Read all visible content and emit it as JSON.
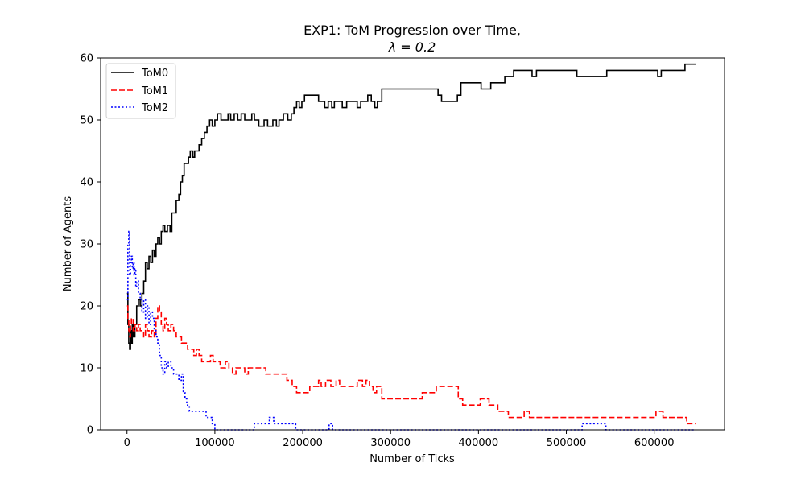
{
  "chart_data": {
    "type": "line",
    "title": "EXP1: ToM Progression over Time,",
    "subtitle": "λ = 0.2",
    "xlabel": "Number of Ticks",
    "ylabel": "Number of Agents",
    "xlim": [
      -30000,
      680000
    ],
    "ylim": [
      0,
      60
    ],
    "xticks": [
      0,
      100000,
      200000,
      300000,
      400000,
      500000,
      600000
    ],
    "xtick_labels": [
      "0",
      "100000",
      "200000",
      "300000",
      "400000",
      "500000",
      "600000"
    ],
    "yticks": [
      0,
      10,
      20,
      30,
      40,
      50,
      60
    ],
    "ytick_labels": [
      "0",
      "10",
      "20",
      "30",
      "40",
      "50",
      "60"
    ],
    "grid": false,
    "legend_position": "top-left",
    "series": [
      {
        "name": "ToM0",
        "color": "#000000",
        "style": "solid",
        "points": [
          [
            0,
            22
          ],
          [
            1000,
            17
          ],
          [
            2000,
            14
          ],
          [
            3000,
            13
          ],
          [
            4000,
            16
          ],
          [
            5000,
            14
          ],
          [
            6000,
            17
          ],
          [
            7000,
            15
          ],
          [
            9000,
            17
          ],
          [
            11000,
            20
          ],
          [
            13000,
            21
          ],
          [
            15000,
            20
          ],
          [
            17000,
            22
          ],
          [
            19000,
            24
          ],
          [
            21000,
            27
          ],
          [
            23000,
            26
          ],
          [
            25000,
            28
          ],
          [
            27000,
            27
          ],
          [
            29000,
            29
          ],
          [
            31000,
            28
          ],
          [
            33000,
            30
          ],
          [
            35000,
            31
          ],
          [
            37000,
            30
          ],
          [
            39000,
            32
          ],
          [
            41000,
            33
          ],
          [
            43000,
            32
          ],
          [
            46000,
            33
          ],
          [
            49000,
            32
          ],
          [
            51000,
            35
          ],
          [
            54000,
            35
          ],
          [
            56000,
            37
          ],
          [
            59000,
            38
          ],
          [
            61000,
            40
          ],
          [
            63000,
            41
          ],
          [
            65000,
            43
          ],
          [
            68000,
            43
          ],
          [
            70000,
            44
          ],
          [
            72000,
            45
          ],
          [
            75000,
            44
          ],
          [
            77000,
            45
          ],
          [
            80000,
            45
          ],
          [
            82000,
            46
          ],
          [
            85000,
            47
          ],
          [
            88000,
            48
          ],
          [
            91000,
            49
          ],
          [
            94000,
            50
          ],
          [
            97000,
            49
          ],
          [
            100000,
            50
          ],
          [
            103000,
            51
          ],
          [
            107000,
            50
          ],
          [
            112000,
            50
          ],
          [
            115000,
            51
          ],
          [
            118000,
            50
          ],
          [
            122000,
            51
          ],
          [
            126000,
            50
          ],
          [
            130000,
            51
          ],
          [
            134000,
            50
          ],
          [
            138000,
            50
          ],
          [
            142000,
            51
          ],
          [
            145000,
            50
          ],
          [
            150000,
            49
          ],
          [
            156000,
            50
          ],
          [
            160000,
            49
          ],
          [
            166000,
            50
          ],
          [
            170000,
            49
          ],
          [
            173000,
            50
          ],
          [
            178000,
            51
          ],
          [
            183000,
            50
          ],
          [
            187000,
            51
          ],
          [
            190000,
            52
          ],
          [
            193000,
            53
          ],
          [
            196000,
            52
          ],
          [
            199000,
            53
          ],
          [
            202000,
            54
          ],
          [
            210000,
            54
          ],
          [
            218000,
            53
          ],
          [
            225000,
            52
          ],
          [
            229000,
            53
          ],
          [
            233000,
            52
          ],
          [
            236000,
            53
          ],
          [
            240000,
            53
          ],
          [
            245000,
            52
          ],
          [
            250000,
            53
          ],
          [
            256000,
            53
          ],
          [
            262000,
            52
          ],
          [
            266000,
            53
          ],
          [
            270000,
            53
          ],
          [
            274000,
            54
          ],
          [
            278000,
            53
          ],
          [
            282000,
            52
          ],
          [
            285000,
            53
          ],
          [
            290000,
            55
          ],
          [
            310000,
            55
          ],
          [
            330000,
            55
          ],
          [
            354000,
            54
          ],
          [
            358000,
            53
          ],
          [
            366000,
            53
          ],
          [
            372000,
            53
          ],
          [
            376000,
            54
          ],
          [
            380000,
            56
          ],
          [
            395000,
            56
          ],
          [
            403000,
            55
          ],
          [
            410000,
            55
          ],
          [
            414000,
            56
          ],
          [
            426000,
            56
          ],
          [
            430000,
            57
          ],
          [
            436000,
            57
          ],
          [
            440000,
            58
          ],
          [
            456000,
            58
          ],
          [
            461000,
            57
          ],
          [
            466000,
            58
          ],
          [
            500000,
            58
          ],
          [
            507000,
            58
          ],
          [
            512000,
            57
          ],
          [
            541000,
            57
          ],
          [
            546000,
            58
          ],
          [
            562000,
            58
          ],
          [
            579000,
            58
          ],
          [
            600000,
            58
          ],
          [
            604000,
            57
          ],
          [
            608000,
            58
          ],
          [
            631000,
            58
          ],
          [
            635000,
            59
          ],
          [
            647000,
            59
          ]
        ]
      },
      {
        "name": "ToM1",
        "color": "#ff0000",
        "style": "dashed",
        "points": [
          [
            0,
            20
          ],
          [
            1000,
            18
          ],
          [
            2000,
            16
          ],
          [
            3000,
            15
          ],
          [
            4000,
            17
          ],
          [
            5000,
            18
          ],
          [
            7000,
            16
          ],
          [
            9000,
            17
          ],
          [
            11000,
            16
          ],
          [
            13000,
            17
          ],
          [
            15000,
            16
          ],
          [
            17000,
            16
          ],
          [
            19000,
            15
          ],
          [
            21000,
            17
          ],
          [
            23000,
            16
          ],
          [
            25000,
            15
          ],
          [
            28000,
            16
          ],
          [
            31000,
            15
          ],
          [
            33000,
            18
          ],
          [
            35000,
            20
          ],
          [
            37000,
            19
          ],
          [
            39000,
            17
          ],
          [
            41000,
            16
          ],
          [
            43000,
            18
          ],
          [
            45000,
            17
          ],
          [
            47000,
            16
          ],
          [
            50000,
            17
          ],
          [
            53000,
            16
          ],
          [
            56000,
            15
          ],
          [
            59000,
            15
          ],
          [
            62000,
            14
          ],
          [
            66000,
            14
          ],
          [
            69000,
            13
          ],
          [
            73000,
            13
          ],
          [
            76000,
            12
          ],
          [
            79000,
            13
          ],
          [
            82000,
            12
          ],
          [
            85000,
            11
          ],
          [
            90000,
            11
          ],
          [
            95000,
            12
          ],
          [
            98000,
            11
          ],
          [
            102000,
            11
          ],
          [
            106000,
            10
          ],
          [
            112000,
            11
          ],
          [
            116000,
            10
          ],
          [
            120000,
            9
          ],
          [
            124000,
            10
          ],
          [
            128000,
            10
          ],
          [
            134000,
            9
          ],
          [
            138000,
            10
          ],
          [
            145000,
            10
          ],
          [
            150000,
            10
          ],
          [
            158000,
            9
          ],
          [
            165000,
            9
          ],
          [
            176000,
            9
          ],
          [
            182000,
            8
          ],
          [
            188000,
            7
          ],
          [
            193000,
            6
          ],
          [
            198000,
            6
          ],
          [
            208000,
            7
          ],
          [
            213000,
            7
          ],
          [
            218000,
            8
          ],
          [
            221000,
            7
          ],
          [
            226000,
            8
          ],
          [
            232000,
            7
          ],
          [
            238000,
            8
          ],
          [
            242000,
            7
          ],
          [
            250000,
            7
          ],
          [
            258000,
            7
          ],
          [
            262000,
            8
          ],
          [
            268000,
            7
          ],
          [
            272000,
            8
          ],
          [
            276000,
            7
          ],
          [
            280000,
            6
          ],
          [
            284000,
            7
          ],
          [
            290000,
            5
          ],
          [
            305000,
            5
          ],
          [
            320000,
            5
          ],
          [
            330000,
            5
          ],
          [
            336000,
            6
          ],
          [
            345000,
            6
          ],
          [
            352000,
            7
          ],
          [
            365000,
            7
          ],
          [
            372000,
            7
          ],
          [
            377000,
            5
          ],
          [
            382000,
            4
          ],
          [
            398000,
            4
          ],
          [
            402000,
            5
          ],
          [
            408000,
            5
          ],
          [
            412000,
            4
          ],
          [
            418000,
            4
          ],
          [
            422000,
            3
          ],
          [
            428000,
            3
          ],
          [
            434000,
            2
          ],
          [
            446000,
            2
          ],
          [
            452000,
            3
          ],
          [
            458000,
            2
          ],
          [
            480000,
            2
          ],
          [
            500000,
            2
          ],
          [
            540000,
            2
          ],
          [
            560000,
            2
          ],
          [
            598000,
            2
          ],
          [
            602000,
            3
          ],
          [
            606000,
            3
          ],
          [
            610000,
            2
          ],
          [
            632000,
            2
          ],
          [
            637000,
            1
          ],
          [
            647000,
            1
          ]
        ]
      },
      {
        "name": "ToM2",
        "color": "#0000ff",
        "style": "dotted",
        "points": [
          [
            0,
            21
          ],
          [
            1000,
            30
          ],
          [
            2000,
            32
          ],
          [
            3000,
            25
          ],
          [
            4000,
            27
          ],
          [
            5000,
            28
          ],
          [
            6000,
            26
          ],
          [
            7000,
            27
          ],
          [
            8000,
            25
          ],
          [
            9000,
            26
          ],
          [
            10000,
            23
          ],
          [
            11000,
            24
          ],
          [
            13000,
            22
          ],
          [
            15000,
            21
          ],
          [
            17000,
            19
          ],
          [
            19000,
            21
          ],
          [
            21000,
            18
          ],
          [
            23000,
            20
          ],
          [
            25000,
            17
          ],
          [
            27000,
            19
          ],
          [
            29000,
            18
          ],
          [
            31000,
            16
          ],
          [
            33000,
            15
          ],
          [
            35000,
            14
          ],
          [
            37000,
            12
          ],
          [
            39000,
            10
          ],
          [
            41000,
            9
          ],
          [
            43000,
            11
          ],
          [
            45000,
            10
          ],
          [
            47000,
            11
          ],
          [
            50000,
            10
          ],
          [
            53000,
            9
          ],
          [
            56000,
            9
          ],
          [
            59000,
            8
          ],
          [
            62000,
            9
          ],
          [
            64000,
            6
          ],
          [
            66000,
            5
          ],
          [
            68000,
            4
          ],
          [
            71000,
            3
          ],
          [
            76000,
            3
          ],
          [
            86000,
            3
          ],
          [
            90000,
            2
          ],
          [
            94000,
            2
          ],
          [
            97000,
            1
          ],
          [
            100000,
            0
          ],
          [
            120000,
            0
          ],
          [
            140000,
            0
          ],
          [
            145000,
            1
          ],
          [
            158000,
            1
          ],
          [
            162000,
            2
          ],
          [
            167000,
            1
          ],
          [
            174000,
            1
          ],
          [
            188000,
            1
          ],
          [
            192000,
            0
          ],
          [
            225000,
            0
          ],
          [
            230000,
            1
          ],
          [
            234000,
            0
          ],
          [
            300000,
            0
          ],
          [
            400000,
            0
          ],
          [
            500000,
            0
          ],
          [
            515000,
            0
          ],
          [
            518000,
            1
          ],
          [
            540000,
            1
          ],
          [
            545000,
            0
          ],
          [
            600000,
            0
          ],
          [
            647000,
            0
          ]
        ]
      }
    ]
  }
}
